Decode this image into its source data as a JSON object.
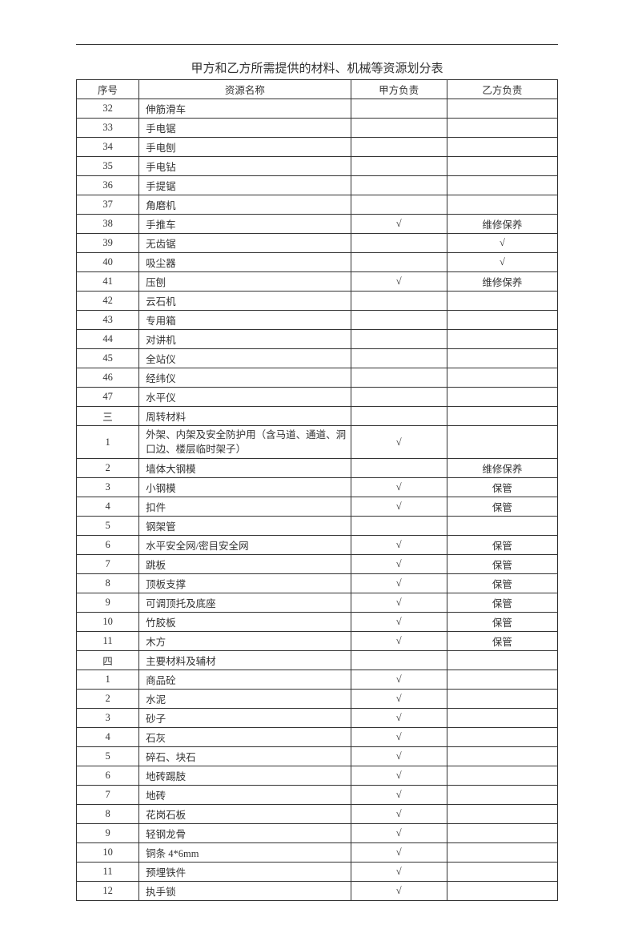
{
  "title": "甲方和乙方所需提供的材料、机械等资源划分表",
  "columns": {
    "seq": "序号",
    "name": "资源名称",
    "partyA": "甲方负责",
    "partyB": "乙方负责"
  },
  "check": "√",
  "rows": [
    {
      "seq": "32",
      "name": "伸筋滑车",
      "a": "",
      "b": ""
    },
    {
      "seq": "33",
      "name": "手电锯",
      "a": "",
      "b": ""
    },
    {
      "seq": "34",
      "name": "手电刨",
      "a": "",
      "b": ""
    },
    {
      "seq": "35",
      "name": "手电钻",
      "a": "",
      "b": ""
    },
    {
      "seq": "36",
      "name": "手提锯",
      "a": "",
      "b": ""
    },
    {
      "seq": "37",
      "name": "角磨机",
      "a": "",
      "b": ""
    },
    {
      "seq": "38",
      "name": "手推车",
      "a": "√",
      "b": "维修保养"
    },
    {
      "seq": "39",
      "name": "无齿锯",
      "a": "",
      "b": "√"
    },
    {
      "seq": "40",
      "name": "吸尘器",
      "a": "",
      "b": "√"
    },
    {
      "seq": "41",
      "name": "压刨",
      "a": "√",
      "b": "维修保养"
    },
    {
      "seq": "42",
      "name": "云石机",
      "a": "",
      "b": ""
    },
    {
      "seq": "43",
      "name": "专用箱",
      "a": "",
      "b": ""
    },
    {
      "seq": "44",
      "name": "对讲机",
      "a": "",
      "b": ""
    },
    {
      "seq": "45",
      "name": "全站仪",
      "a": "",
      "b": ""
    },
    {
      "seq": "46",
      "name": "经纬仪",
      "a": "",
      "b": ""
    },
    {
      "seq": "47",
      "name": "水平仪",
      "a": "",
      "b": ""
    },
    {
      "seq": "三",
      "name": "周转材料",
      "a": "",
      "b": ""
    },
    {
      "seq": "1",
      "name": "外架、内架及安全防护用（含马道、通道、洞口边、楼层临时架子）",
      "a": "√",
      "b": "",
      "tall": true
    },
    {
      "seq": "2",
      "name": "墙体大钢模",
      "a": "",
      "b": "维修保养"
    },
    {
      "seq": "3",
      "name": "小钢模",
      "a": "√",
      "b": "保管"
    },
    {
      "seq": "4",
      "name": "扣件",
      "a": "√",
      "b": "保管"
    },
    {
      "seq": "5",
      "name": "钢架管",
      "a": "",
      "b": ""
    },
    {
      "seq": "6",
      "name": "水平安全网/密目安全网",
      "a": "√",
      "b": "保管"
    },
    {
      "seq": "7",
      "name": "跳板",
      "a": "√",
      "b": "保管"
    },
    {
      "seq": "8",
      "name": "顶板支撑",
      "a": "√",
      "b": "保管"
    },
    {
      "seq": "9",
      "name": "可调顶托及底座",
      "a": "√",
      "b": "保管"
    },
    {
      "seq": "10",
      "name": "竹胶板",
      "a": "√",
      "b": "保管"
    },
    {
      "seq": "11",
      "name": "木方",
      "a": "√",
      "b": "保管"
    },
    {
      "seq": "四",
      "name": "主要材料及辅材",
      "a": "",
      "b": ""
    },
    {
      "seq": "1",
      "name": "商品砼",
      "a": "√",
      "b": ""
    },
    {
      "seq": "2",
      "name": "水泥",
      "a": "√",
      "b": ""
    },
    {
      "seq": "3",
      "name": "砂子",
      "a": "√",
      "b": ""
    },
    {
      "seq": "4",
      "name": "石灰",
      "a": "√",
      "b": ""
    },
    {
      "seq": "5",
      "name": "碎石、块石",
      "a": "√",
      "b": ""
    },
    {
      "seq": "6",
      "name": "地砖踢肢",
      "a": "√",
      "b": ""
    },
    {
      "seq": "7",
      "name": "地砖",
      "a": "√",
      "b": ""
    },
    {
      "seq": "8",
      "name": "花岗石板",
      "a": "√",
      "b": ""
    },
    {
      "seq": "9",
      "name": "轻钢龙骨",
      "a": "√",
      "b": ""
    },
    {
      "seq": "10",
      "name": "铜条 4*6mm",
      "a": "√",
      "b": ""
    },
    {
      "seq": "11",
      "name": "预埋铁件",
      "a": "√",
      "b": ""
    },
    {
      "seq": "12",
      "name": "执手锁",
      "a": "√",
      "b": ""
    }
  ]
}
